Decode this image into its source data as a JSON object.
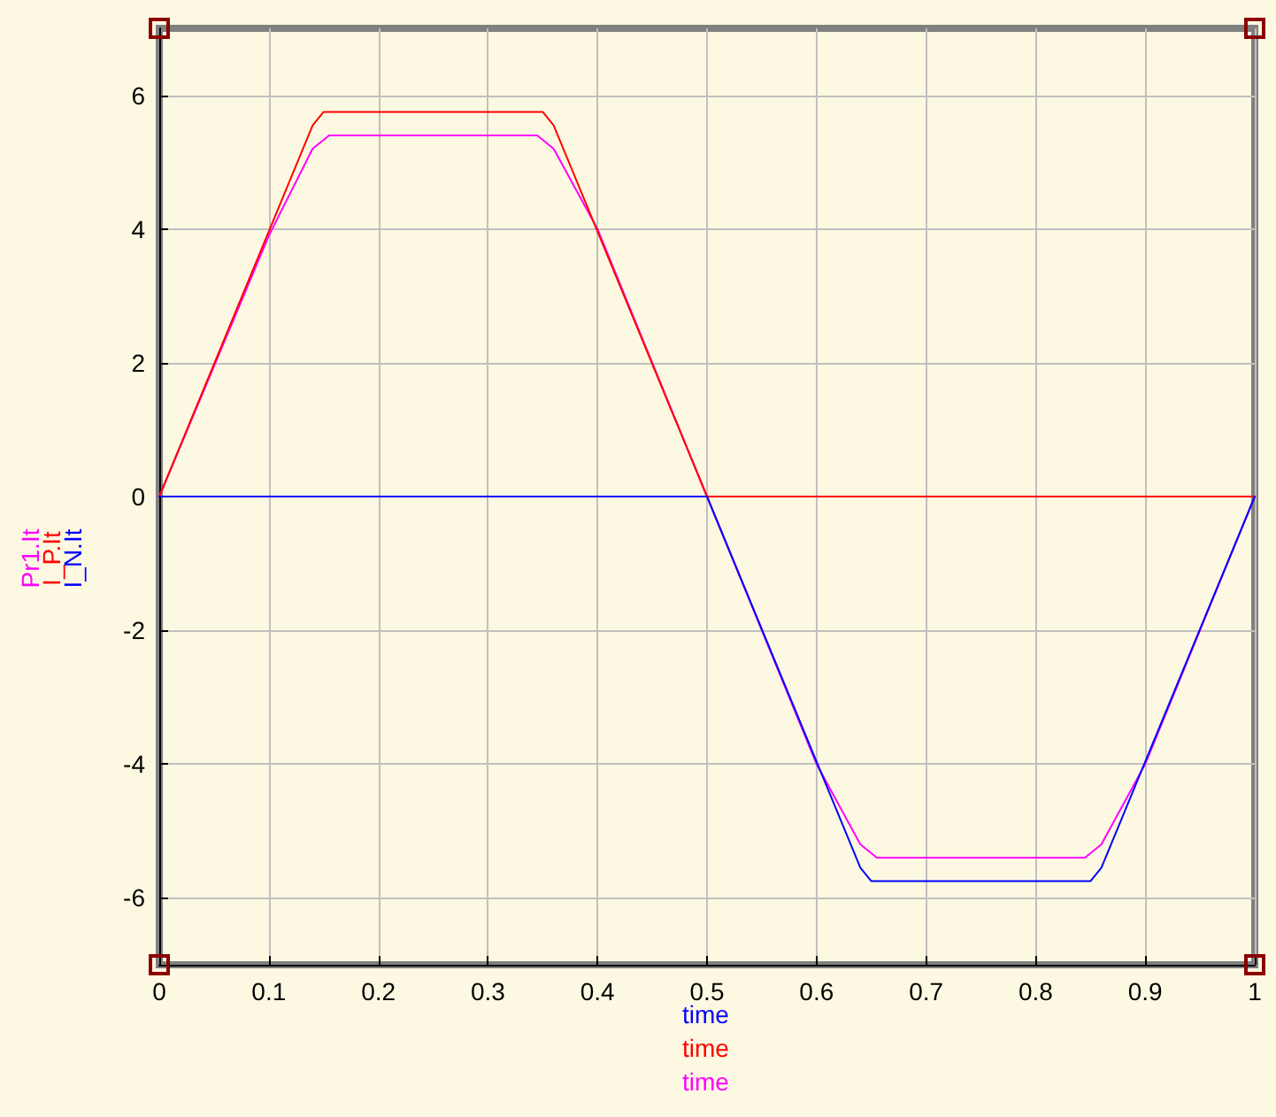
{
  "chart_data": {
    "type": "line",
    "xlabel": "time",
    "xlim": [
      0,
      1
    ],
    "xticks": [
      0,
      0.1,
      0.2,
      0.3,
      0.4,
      0.5,
      0.6,
      0.7,
      0.8,
      0.9,
      1
    ],
    "ylim": [
      -7,
      7
    ],
    "yticks": [
      -6,
      -4,
      -2,
      0,
      2,
      4,
      6
    ],
    "grid": true,
    "legend": "left",
    "marker": "none",
    "series": [
      {
        "name": "Pr1.It",
        "color": "#ff00ff",
        "x": [
          0,
          0.1,
          0.14,
          0.155,
          0.345,
          0.36,
          0.4,
          0.5,
          0.6,
          0.64,
          0.655,
          0.845,
          0.86,
          0.9,
          1
        ],
        "values": [
          0,
          3.9,
          5.2,
          5.4,
          5.4,
          5.2,
          4.0,
          0,
          -4.0,
          -5.2,
          -5.4,
          -5.4,
          -5.2,
          -4.0,
          0
        ]
      },
      {
        "name": "I_P.It",
        "color": "#ff0000",
        "x": [
          0,
          0.14,
          0.15,
          0.35,
          0.36,
          0.5,
          1
        ],
        "values": [
          0,
          5.55,
          5.75,
          5.75,
          5.55,
          0,
          0
        ]
      },
      {
        "name": "I_N.It",
        "color": "#0000ff",
        "x": [
          0,
          0.5,
          0.64,
          0.65,
          0.85,
          0.86,
          1
        ],
        "values": [
          0,
          0,
          -5.55,
          -5.75,
          -5.75,
          -5.55,
          0
        ]
      }
    ]
  }
}
